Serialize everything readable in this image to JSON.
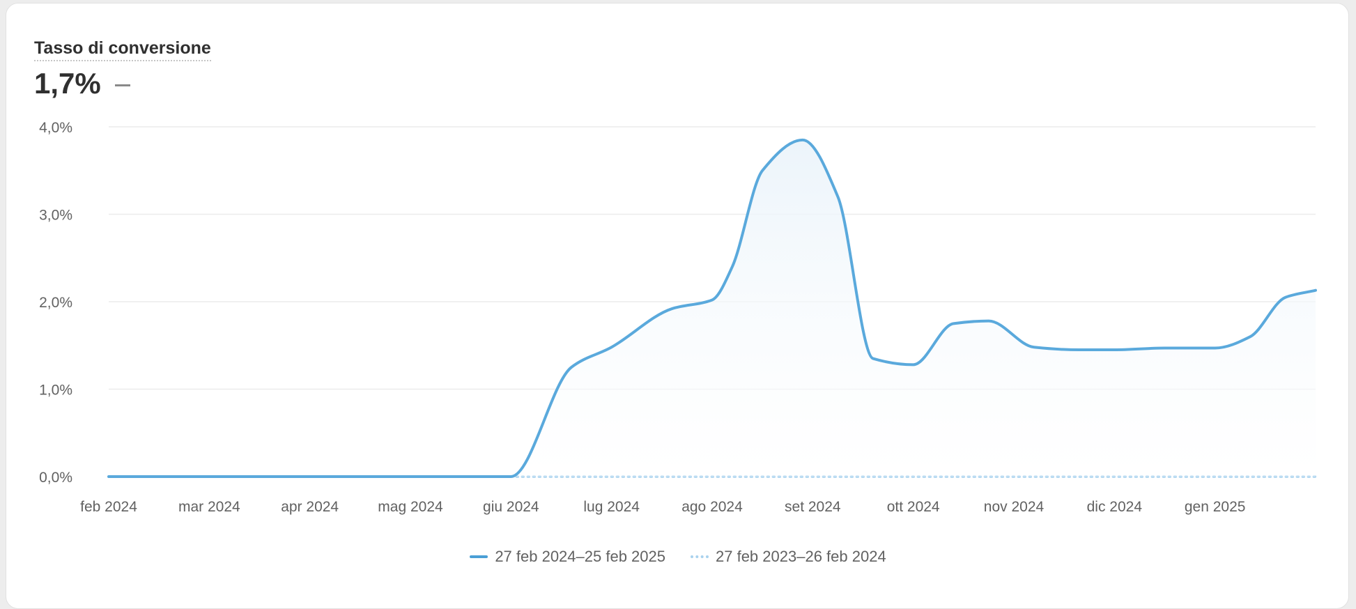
{
  "card": {
    "title": "Tasso di conversione",
    "value": "1,7%"
  },
  "legend": {
    "current": "27 feb 2024–25 feb 2025",
    "previous": "27 feb 2023–26 feb 2024"
  },
  "colors": {
    "current_series": "#5aa9dc",
    "previous_series": "#a9d2ee",
    "area_fill": "#f3f8fc",
    "grid": "#ececec",
    "tick_text": "#616161"
  },
  "chart_data": {
    "type": "line",
    "ylim": [
      0,
      4
    ],
    "yticks": [
      0,
      1,
      2,
      3,
      4
    ],
    "ytick_labels": [
      "0,0%",
      "1,0%",
      "2,0%",
      "3,0%",
      "4,0%"
    ],
    "xlim": [
      0,
      12
    ],
    "xticks": [
      0,
      1,
      2,
      3,
      4,
      5,
      6,
      7,
      8,
      9,
      10,
      11
    ],
    "xtick_labels": [
      "feb 2024",
      "mar 2024",
      "apr 2024",
      "mag 2024",
      "giu 2024",
      "lug 2024",
      "ago 2024",
      "set 2024",
      "ott 2024",
      "nov 2024",
      "dic 2024",
      "gen 2025"
    ],
    "grid": true,
    "legend_position": "bottom-center",
    "series": [
      {
        "name": "27 feb 2024–25 feb 2025",
        "style": "solid",
        "x": [
          0,
          1,
          2,
          3,
          4,
          4.6,
          5.0,
          5.6,
          6.0,
          6.2,
          6.5,
          6.9,
          7.25,
          7.6,
          8.0,
          8.4,
          8.75,
          9.2,
          9.65,
          10.0,
          10.5,
          11.0,
          11.35,
          11.7,
          12.0
        ],
        "y": [
          0,
          0,
          0,
          0,
          0,
          1.25,
          1.48,
          1.92,
          2.02,
          2.4,
          3.5,
          3.85,
          3.2,
          1.35,
          1.28,
          1.75,
          1.78,
          1.48,
          1.45,
          1.45,
          1.47,
          1.47,
          1.6,
          2.05,
          2.13
        ]
      },
      {
        "name": "27 feb 2023–26 feb 2024",
        "style": "dotted",
        "x": [
          4,
          12
        ],
        "y": [
          0,
          0
        ]
      }
    ]
  }
}
